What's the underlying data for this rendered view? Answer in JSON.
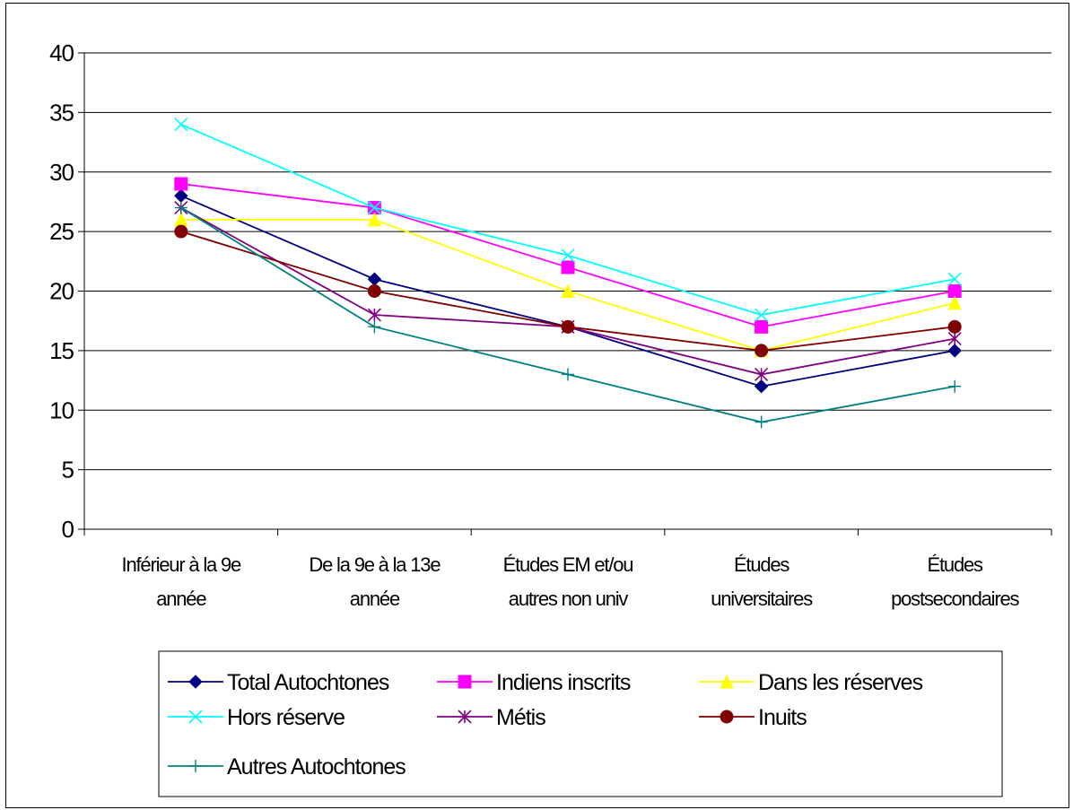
{
  "chart_data": {
    "type": "line",
    "title": "",
    "xlabel": "",
    "ylabel": "",
    "ylim": [
      0,
      40
    ],
    "yticks": [
      "0",
      "5",
      "10",
      "15",
      "20",
      "25",
      "30",
      "35",
      "40"
    ],
    "grid": true,
    "legend_position": "bottom",
    "categories": [
      [
        "Inférieur à la 9e",
        "année"
      ],
      [
        "De la 9e à la 13e",
        "année"
      ],
      [
        "Études EM et/ou",
        "autres non univ"
      ],
      [
        "Études",
        "universitaires"
      ],
      [
        "Études",
        "postsecondaires"
      ]
    ],
    "series": [
      {
        "name": "Total Autochtones",
        "values": [
          28,
          21,
          17,
          12,
          15
        ],
        "color": "#000080",
        "marker": "diamond"
      },
      {
        "name": "Indiens inscrits",
        "values": [
          29,
          27,
          22,
          17,
          20
        ],
        "color": "#ff00ff",
        "marker": "square"
      },
      {
        "name": "Dans les réserves",
        "values": [
          26,
          26,
          20,
          15,
          19
        ],
        "color": "#ffff00",
        "marker": "triangle"
      },
      {
        "name": "Hors réserve",
        "values": [
          34,
          27,
          23,
          18,
          21
        ],
        "color": "#00ffff",
        "marker": "x"
      },
      {
        "name": "Métis",
        "values": [
          27,
          18,
          17,
          13,
          16
        ],
        "color": "#800080",
        "marker": "star"
      },
      {
        "name": "Inuits",
        "values": [
          25,
          20,
          17,
          15,
          17
        ],
        "color": "#800000",
        "marker": "circle"
      },
      {
        "name": "Autres Autochtones",
        "values": [
          27,
          17,
          13,
          9,
          12
        ],
        "color": "#008080",
        "marker": "plus"
      }
    ]
  }
}
